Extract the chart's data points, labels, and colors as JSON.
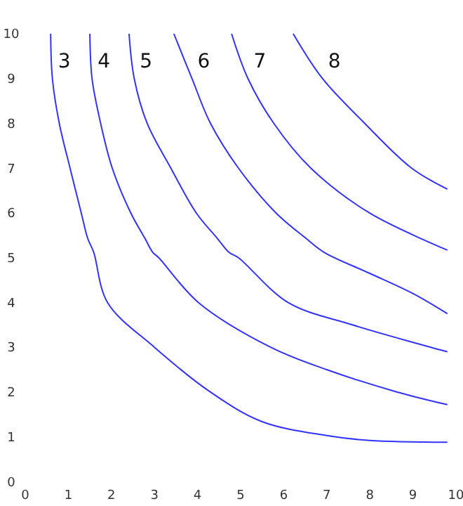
{
  "chart_data": {
    "type": "line",
    "xlim": [
      0,
      10
    ],
    "ylim": [
      0,
      10
    ],
    "xticks": [
      0,
      1,
      2,
      3,
      4,
      5,
      6,
      7,
      8,
      9,
      10
    ],
    "yticks": [
      0,
      1,
      2,
      3,
      4,
      5,
      6,
      7,
      8,
      9,
      10
    ],
    "series": [
      {
        "name": "3",
        "color": "#3333ff",
        "x": [
          0.59,
          0.63,
          0.79,
          1.04,
          1.3,
          1.45,
          1.59,
          1.91,
          3.0,
          4.3,
          5.5,
          7,
          8,
          9.8
        ],
        "values": [
          10,
          9,
          8,
          7,
          6,
          5.43,
          5.12,
          4,
          3,
          2,
          1.34,
          1.03,
          0.92,
          0.88
        ]
      },
      {
        "name": "4",
        "color": "#3333ff",
        "x": [
          1.5,
          1.55,
          1.75,
          2.02,
          2.45,
          2.78,
          2.96,
          3.1,
          4.02,
          5.7,
          7.0,
          8.64,
          9.8
        ],
        "values": [
          10,
          9,
          8,
          7,
          6,
          5.43,
          5.12,
          5,
          4,
          3,
          2.5,
          2,
          1.72
        ]
      },
      {
        "name": "5",
        "color": "#3333ff",
        "x": [
          2.41,
          2.53,
          2.83,
          3.38,
          3.97,
          4.46,
          4.73,
          4.95,
          6.1,
          7.6,
          9.8
        ],
        "values": [
          10,
          9,
          8,
          7,
          6,
          5.43,
          5.12,
          5,
          4,
          3.5,
          2.9
        ]
      },
      {
        "name": "6",
        "color": "#3333ff",
        "x": [
          3.45,
          3.87,
          4.3,
          4.95,
          5.82,
          6.52,
          6.94,
          8,
          9,
          9.8
        ],
        "values": [
          10,
          9,
          8,
          7,
          6,
          5.43,
          5.12,
          4.65,
          4.2,
          3.75
        ]
      },
      {
        "name": "7",
        "color": "#3333ff",
        "x": [
          4.79,
          5.17,
          5.77,
          6.63,
          7.99,
          9.8
        ],
        "values": [
          10,
          9,
          8,
          7,
          6,
          5.17
        ]
      },
      {
        "name": "8",
        "color": "#3333ff",
        "x": [
          6.22,
          6.9,
          7.88,
          8.97,
          9.8
        ],
        "values": [
          10,
          9,
          8,
          7,
          6.53
        ]
      }
    ]
  }
}
